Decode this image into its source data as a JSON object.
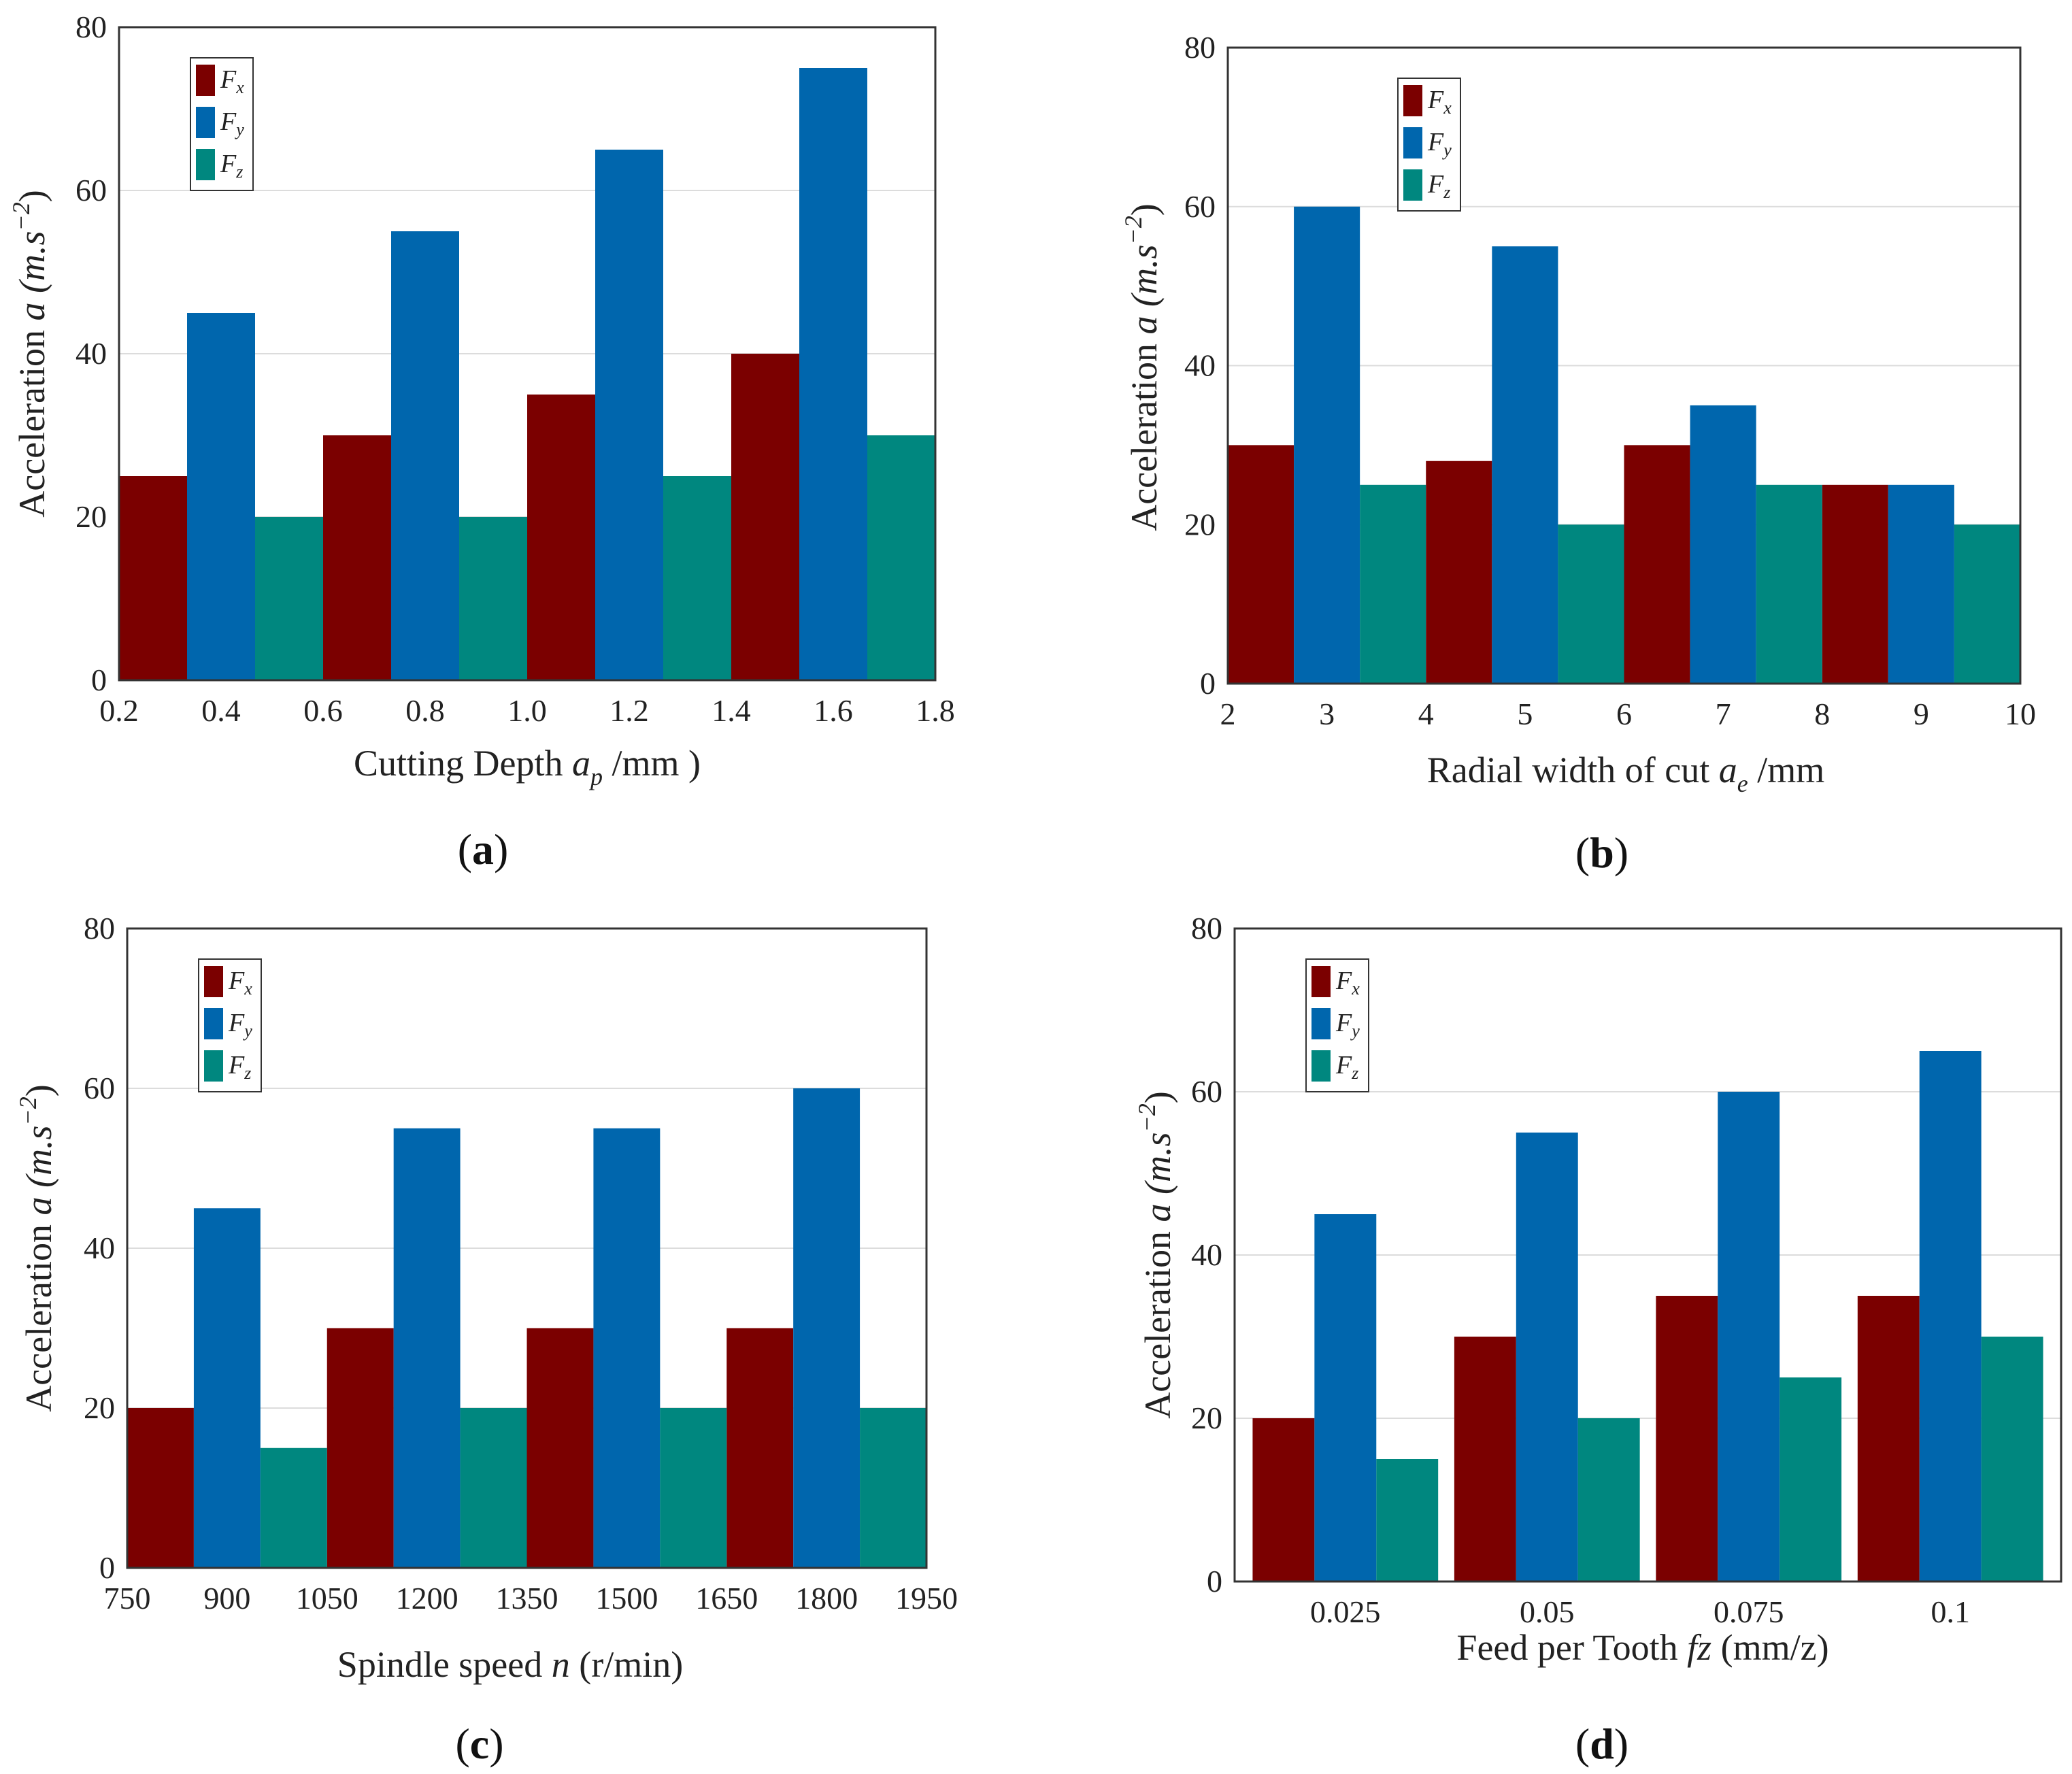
{
  "colors": {
    "Fx": "#7b0000",
    "Fy": "#0066ad",
    "Fz": "#00877f"
  },
  "legend": [
    {
      "main": "F",
      "sub": "x"
    },
    {
      "main": "F",
      "sub": "y"
    },
    {
      "main": "F",
      "sub": "z"
    }
  ],
  "chart_data": [
    {
      "type": "bar",
      "caption_letter": "a",
      "ylabel": {
        "text": "Acceleration ",
        "var": "a",
        "unit": " (m.s",
        "sup": "−2",
        "close": ")"
      },
      "xlabel": {
        "text": "Cutting Depth ",
        "var": "a",
        "sub": "p",
        "rest": " /mm  )"
      },
      "ylim": [
        0,
        80
      ],
      "yticks": [
        0,
        20,
        40,
        60,
        80
      ],
      "xlim": [
        0.2,
        1.8
      ],
      "xticks": [
        "0.2",
        "0.4",
        "0.6",
        "0.8",
        "1.0",
        "1.2",
        "1.4",
        "1.6",
        "1.8"
      ],
      "bar_groups": [
        {
          "start": 0.2,
          "end": 0.6
        },
        {
          "start": 0.6,
          "end": 1.0
        },
        {
          "start": 1.0,
          "end": 1.4
        },
        {
          "start": 1.4,
          "end": 1.8
        }
      ],
      "series": [
        {
          "name": "Fx",
          "values": [
            25,
            30,
            35,
            40
          ]
        },
        {
          "name": "Fy",
          "values": [
            45,
            55,
            65,
            75
          ]
        },
        {
          "name": "Fz",
          "values": [
            20,
            20,
            25,
            30
          ]
        }
      ],
      "grid": true,
      "legend_position": "top-left"
    },
    {
      "type": "bar",
      "caption_letter": "b",
      "ylabel": {
        "text": "Acceleration ",
        "var": "a",
        "unit": " (m.s",
        "sup": "−2",
        "close": ")"
      },
      "xlabel": {
        "text": "Radial width of cut ",
        "var": "a",
        "sub": "e",
        "rest": " /mm"
      },
      "ylim": [
        0,
        80
      ],
      "yticks": [
        0,
        20,
        40,
        60,
        80
      ],
      "xlim": [
        2,
        10
      ],
      "xticks": [
        "2",
        "3",
        "4",
        "5",
        "6",
        "7",
        "8",
        "9",
        "10"
      ],
      "bar_groups": [
        {
          "start": 2,
          "end": 4
        },
        {
          "start": 4,
          "end": 6
        },
        {
          "start": 6,
          "end": 8
        },
        {
          "start": 8,
          "end": 10
        }
      ],
      "series": [
        {
          "name": "Fx",
          "values": [
            30,
            28,
            30,
            25
          ]
        },
        {
          "name": "Fy",
          "values": [
            60,
            55,
            35,
            25
          ]
        },
        {
          "name": "Fz",
          "values": [
            25,
            20,
            25,
            20
          ]
        }
      ],
      "grid": true,
      "legend_position": "top-left"
    },
    {
      "type": "bar",
      "caption_letter": "c",
      "ylabel": {
        "text": "Acceleration ",
        "var": "a",
        "unit": " (m.s",
        "sup": "−2",
        "close": ")"
      },
      "xlabel": {
        "text": "Spindle speed ",
        "var": "n",
        "sub": "",
        "rest": " (r/min)"
      },
      "ylim": [
        0,
        80
      ],
      "yticks": [
        0,
        20,
        40,
        60,
        80
      ],
      "xlim": [
        750,
        1950
      ],
      "xticks": [
        "750",
        "900",
        "1050",
        "1200",
        "1350",
        "1500",
        "1650",
        "1800",
        "1950"
      ],
      "bar_groups": [
        {
          "start": 750,
          "end": 1050
        },
        {
          "start": 1050,
          "end": 1350
        },
        {
          "start": 1350,
          "end": 1650
        },
        {
          "start": 1650,
          "end": 1950
        }
      ],
      "series": [
        {
          "name": "Fx",
          "values": [
            20,
            30,
            30,
            30
          ]
        },
        {
          "name": "Fy",
          "values": [
            45,
            55,
            55,
            60
          ]
        },
        {
          "name": "Fz",
          "values": [
            15,
            20,
            20,
            20
          ]
        }
      ],
      "grid": true,
      "legend_position": "top-left"
    },
    {
      "type": "bar",
      "caption_letter": "d",
      "ylabel": {
        "text": "Acceleration ",
        "var": "a",
        "unit": " (m.s",
        "sup": "−2",
        "close": ")"
      },
      "xlabel": {
        "text": "Feed per Tooth ",
        "var": "fz",
        "sub": "",
        "rest": " (mm/z)"
      },
      "ylim": [
        0,
        80
      ],
      "yticks": [
        0,
        20,
        40,
        60,
        80
      ],
      "xticks": [
        "0.025",
        "0.05",
        "0.075",
        "0.1"
      ],
      "categories": [
        "0.025",
        "0.05",
        "0.075",
        "0.1"
      ],
      "series": [
        {
          "name": "Fx",
          "values": [
            20,
            30,
            35,
            35
          ]
        },
        {
          "name": "Fy",
          "values": [
            45,
            55,
            60,
            65
          ]
        },
        {
          "name": "Fz",
          "values": [
            15,
            20,
            25,
            30
          ]
        }
      ],
      "grid": true,
      "legend_position": "top-left"
    }
  ]
}
